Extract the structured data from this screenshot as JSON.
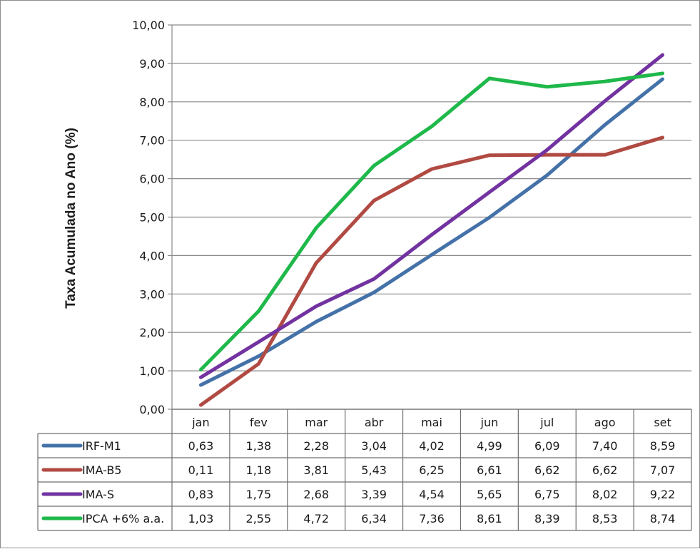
{
  "chart_data": {
    "type": "line",
    "ylabel": "Taxa Acumulada no Ano (%)",
    "xlabel": "",
    "categories": [
      "jan",
      "fev",
      "mar",
      "abr",
      "mai",
      "jun",
      "jul",
      "ago",
      "set"
    ],
    "ylim": [
      0,
      10
    ],
    "yticks": [
      "0,00",
      "1,00",
      "2,00",
      "3,00",
      "4,00",
      "5,00",
      "6,00",
      "7,00",
      "8,00",
      "9,00",
      "10,00"
    ],
    "grid": true,
    "legend": "data-table",
    "series": [
      {
        "name": "IRF-M1",
        "color": "#4472a8",
        "values": [
          0.63,
          1.38,
          2.28,
          3.04,
          4.02,
          4.99,
          6.09,
          7.4,
          8.59
        ],
        "labels": [
          "0,63",
          "1,38",
          "2,28",
          "3,04",
          "4,02",
          "4,99",
          "6,09",
          "7,40",
          "8,59"
        ]
      },
      {
        "name": "IMA-B5",
        "color": "#b04a42",
        "values": [
          0.11,
          1.18,
          3.81,
          5.43,
          6.25,
          6.61,
          6.62,
          6.62,
          7.07
        ],
        "labels": [
          "0,11",
          "1,18",
          "3,81",
          "5,43",
          "6,25",
          "6,61",
          "6,62",
          "6,62",
          "7,07"
        ]
      },
      {
        "name": "IMA-S",
        "color": "#7232a0",
        "values": [
          0.83,
          1.75,
          2.68,
          3.39,
          4.54,
          5.65,
          6.75,
          8.02,
          9.22
        ],
        "labels": [
          "0,83",
          "1,75",
          "2,68",
          "3,39",
          "4,54",
          "5,65",
          "6,75",
          "8,02",
          "9,22"
        ]
      },
      {
        "name": "IPCA +6% a.a.",
        "color": "#1fb84a",
        "values": [
          1.03,
          2.55,
          4.72,
          6.34,
          7.36,
          8.61,
          8.39,
          8.53,
          8.74
        ],
        "labels": [
          "1,03",
          "2,55",
          "4,72",
          "6,34",
          "7,36",
          "8,61",
          "8,39",
          "8,53",
          "8,74"
        ]
      }
    ]
  }
}
